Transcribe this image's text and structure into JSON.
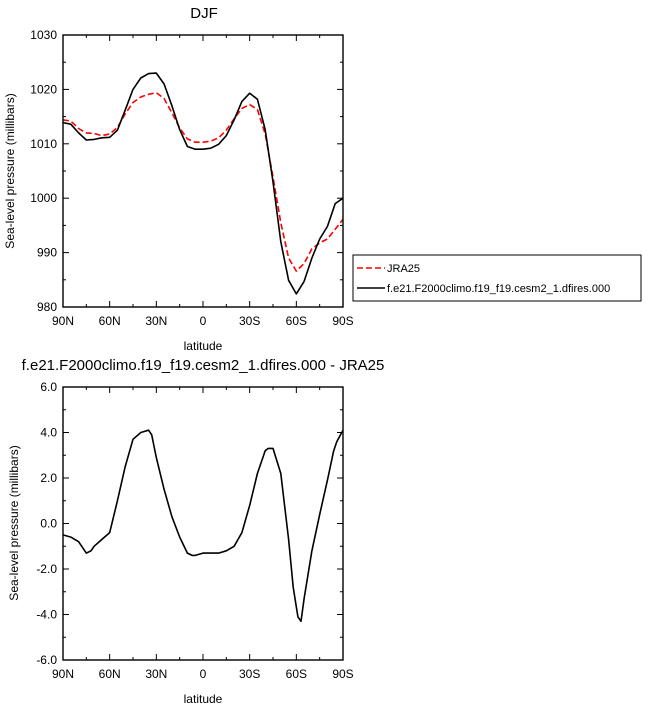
{
  "chart_data": [
    {
      "type": "line",
      "title": "DJF",
      "xlabel": "latitude",
      "ylabel": "Sea-level pressure (millibars)",
      "xlim": [
        -90,
        90
      ],
      "ylim": [
        980,
        1030
      ],
      "x_ticks": [
        -90,
        -60,
        -30,
        0,
        30,
        60,
        90
      ],
      "x_tick_labels": [
        "90N",
        "60N",
        "30N",
        "0",
        "30S",
        "60S",
        "90S"
      ],
      "y_ticks": [
        980,
        990,
        1000,
        1010,
        1020,
        1030
      ],
      "y_tick_labels": [
        "980",
        "990",
        "1000",
        "1010",
        "1020",
        "1030"
      ],
      "legend_position": "outside right",
      "grid": false,
      "series": [
        {
          "name": "JRA25",
          "color": "#ff0000",
          "dash": "dashed",
          "x": [
            -90,
            -85,
            -80,
            -75,
            -70,
            -65,
            -60,
            -55,
            -50,
            -45,
            -40,
            -35,
            -30,
            -25,
            -20,
            -15,
            -10,
            -5,
            0,
            5,
            10,
            15,
            20,
            25,
            30,
            35,
            40,
            45,
            50,
            55,
            60,
            65,
            70,
            75,
            80,
            85,
            90
          ],
          "values": [
            1014.4,
            1014.2,
            1012.8,
            1012.0,
            1011.9,
            1011.5,
            1011.8,
            1013.0,
            1015.5,
            1017.6,
            1018.6,
            1019.1,
            1019.4,
            1018.3,
            1015.7,
            1012.9,
            1010.9,
            1010.3,
            1010.3,
            1010.5,
            1011.1,
            1012.5,
            1014.6,
            1016.5,
            1017.2,
            1016.3,
            1011.8,
            1003.9,
            995.5,
            989.0,
            986.6,
            988.0,
            990.7,
            991.8,
            992.5,
            994.3,
            996.1
          ]
        },
        {
          "name": "f.e21.F2000climo.f19_f19.cesm2_1.dfires.000",
          "color": "#000000",
          "dash": "solid",
          "x": [
            -90,
            -85,
            -80,
            -75,
            -70,
            -65,
            -60,
            -55,
            -50,
            -45,
            -40,
            -35,
            -30,
            -25,
            -20,
            -15,
            -10,
            -5,
            0,
            5,
            10,
            15,
            20,
            25,
            30,
            35,
            40,
            45,
            50,
            55,
            60,
            65,
            70,
            75,
            80,
            85,
            90
          ],
          "values": [
            1013.9,
            1013.6,
            1012.0,
            1010.7,
            1010.8,
            1011.1,
            1011.2,
            1012.5,
            1016.2,
            1020.0,
            1022.1,
            1022.9,
            1023.0,
            1021.0,
            1017.0,
            1012.6,
            1009.5,
            1009.0,
            1009.0,
            1009.2,
            1009.9,
            1011.5,
            1014.4,
            1017.8,
            1019.3,
            1018.2,
            1012.6,
            1003.0,
            992.0,
            984.9,
            982.4,
            984.7,
            989.0,
            992.5,
            994.8,
            999.0,
            1000.0
          ]
        }
      ]
    },
    {
      "type": "line",
      "title": "f.e21.F2000climo.f19_f19.cesm2_1.dfires.000 - JRA25",
      "xlabel": "latitude",
      "ylabel": "Sea-level pressure (millibars)",
      "xlim": [
        -90,
        90
      ],
      "ylim": [
        -6.0,
        6.0
      ],
      "x_ticks": [
        -90,
        -60,
        -30,
        0,
        30,
        60,
        90
      ],
      "x_tick_labels": [
        "90N",
        "60N",
        "30N",
        "0",
        "30S",
        "60S",
        "90S"
      ],
      "y_ticks": [
        -6,
        -4,
        -2,
        0,
        2,
        4,
        6
      ],
      "y_tick_labels": [
        "-6.0",
        "-4.0",
        "-2.0",
        "0.0",
        "2.0",
        "4.0",
        "6.0"
      ],
      "grid": false,
      "series": [
        {
          "color": "#000000",
          "dash": "solid",
          "x": [
            -90,
            -85,
            -80,
            -75,
            -72,
            -70,
            -65,
            -60,
            -55,
            -50,
            -45,
            -40,
            -35,
            -33,
            -30,
            -25,
            -20,
            -15,
            -10,
            -7,
            -5,
            0,
            5,
            10,
            15,
            20,
            25,
            30,
            35,
            40,
            42,
            45,
            50,
            55,
            58,
            61,
            63,
            65,
            70,
            75,
            80,
            84,
            86,
            90
          ],
          "values": [
            -0.5,
            -0.6,
            -0.8,
            -1.3,
            -1.2,
            -1.0,
            -0.7,
            -0.4,
            1.0,
            2.5,
            3.7,
            4.0,
            4.1,
            3.9,
            2.9,
            1.5,
            0.3,
            -0.6,
            -1.3,
            -1.4,
            -1.4,
            -1.3,
            -1.3,
            -1.3,
            -1.2,
            -1.0,
            -0.4,
            0.8,
            2.2,
            3.2,
            3.3,
            3.3,
            2.2,
            -0.7,
            -2.8,
            -4.1,
            -4.3,
            -3.3,
            -1.2,
            0.4,
            1.9,
            3.2,
            3.6,
            4.1
          ]
        }
      ]
    }
  ]
}
